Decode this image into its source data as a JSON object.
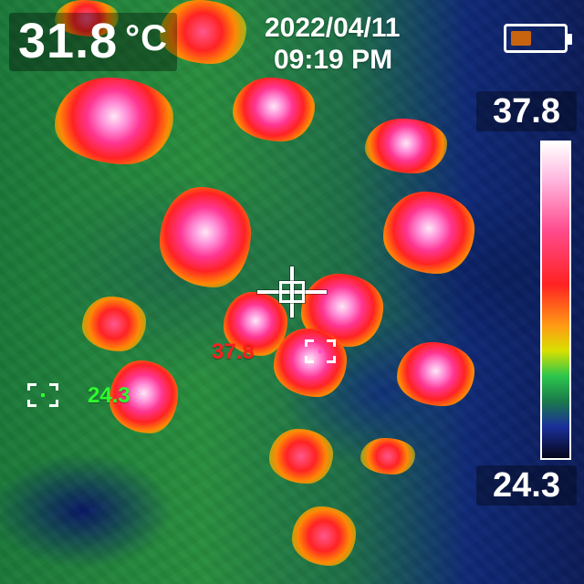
{
  "status_bar": {
    "center_temperature": "31.8",
    "temperature_unit": "°C",
    "date": "2022/04/11",
    "time": "09:19 PM",
    "battery_level_fraction": 0.4
  },
  "temperature_scale": {
    "max_label": "37.8",
    "min_label": "24.3"
  },
  "spot_markers": {
    "hot_label": "37.8",
    "cold_label": "24.3"
  },
  "palette": {
    "hot_marker_color": "#ff1e1e",
    "cold_marker_color": "#2dff2d",
    "battery_fill_color": "#c86410"
  }
}
